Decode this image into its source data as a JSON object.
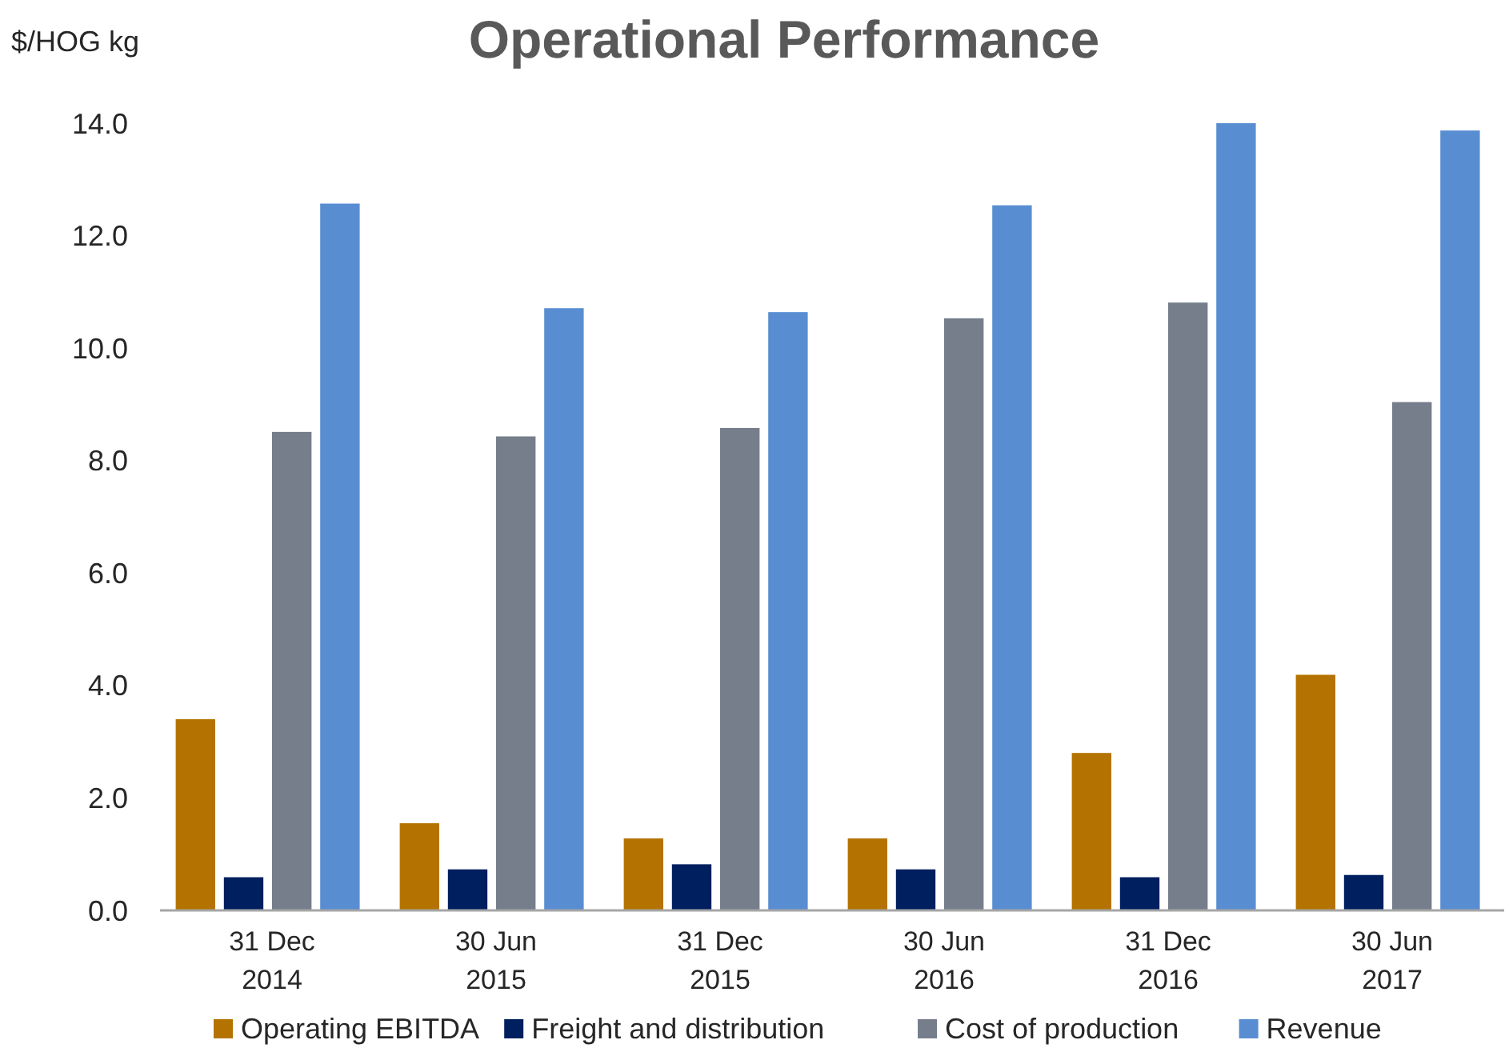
{
  "chart_data": {
    "type": "bar",
    "title": "Operational Performance",
    "ylabel": "$/HOG kg",
    "categories": [
      "31 Dec 2014",
      "30 Jun 2015",
      "31 Dec 2015",
      "30 Jun 2016",
      "31 Dec 2016",
      "30 Jun 2017"
    ],
    "series": [
      {
        "name": "Operating EBITDA",
        "color": "#b47300",
        "values": [
          3.4,
          1.55,
          1.28,
          1.28,
          2.8,
          4.19
        ]
      },
      {
        "name": "Freight and distribution",
        "color": "#001f5f",
        "values": [
          0.59,
          0.73,
          0.82,
          0.73,
          0.59,
          0.63
        ]
      },
      {
        "name": "Cost of production",
        "color": "#767d8b",
        "values": [
          8.51,
          8.43,
          8.58,
          10.53,
          10.81,
          9.04
        ]
      },
      {
        "name": "Revenue",
        "color": "#588dd2",
        "values": [
          12.57,
          10.71,
          10.64,
          12.54,
          14.0,
          13.87
        ]
      }
    ],
    "ylim": [
      0,
      14
    ],
    "yticks": [
      {
        "value": 0,
        "label": "0.0"
      },
      {
        "value": 2,
        "label": "2.0"
      },
      {
        "value": 4,
        "label": "4.0"
      },
      {
        "value": 6,
        "label": "6.0"
      },
      {
        "value": 8,
        "label": "8.0"
      },
      {
        "value": 10,
        "label": "10.0"
      },
      {
        "value": 12,
        "label": "12.0"
      },
      {
        "value": 14,
        "label": "14.0"
      }
    ],
    "grid": false,
    "legend": "bottom"
  }
}
